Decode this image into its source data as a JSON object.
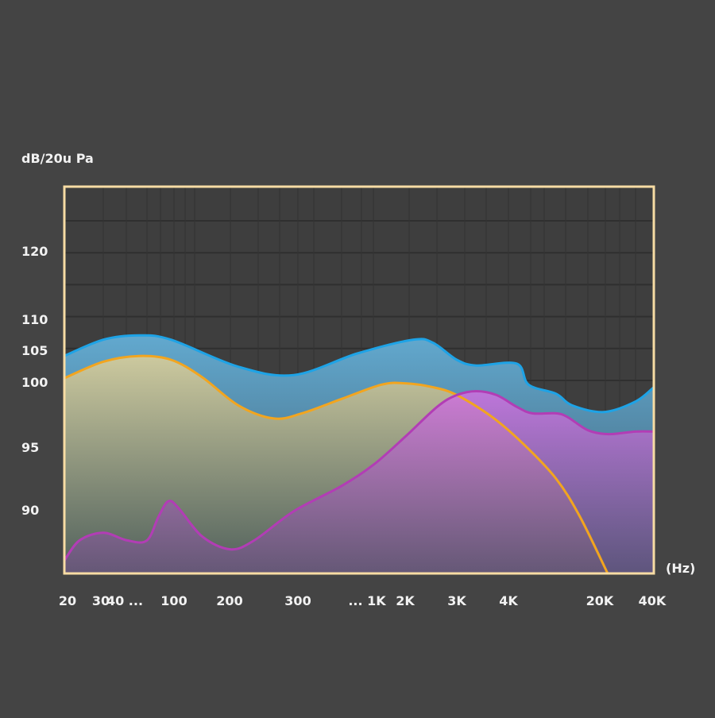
{
  "chart_data": {
    "type": "area",
    "ylabel": "dB/20u Pa",
    "xlabel": "(Hz)",
    "y_ticks": [
      120,
      110,
      105,
      100,
      95,
      90
    ],
    "x_categories": [
      "20",
      "30",
      "40 ...",
      "100",
      "200",
      "300",
      "... 1K",
      "2K",
      "3K",
      "4K",
      "20K",
      "40K"
    ],
    "x_note": "series x values are fractional positions along the category axis (0 = '20', 11 = '40K')",
    "ylim": [
      85,
      125
    ],
    "grid": true,
    "series": [
      {
        "name": "blue",
        "color": "#1ea3e6",
        "fill": "#5fa6cc",
        "points": [
          [
            -0.1,
            104.1
          ],
          [
            1.1,
            106.7
          ],
          [
            2.29,
            107.4
          ],
          [
            2.94,
            106.7
          ],
          [
            4.13,
            102.4
          ],
          [
            4.94,
            101.1
          ],
          [
            5.86,
            104.5
          ],
          [
            7.15,
            106.7
          ],
          [
            7.54,
            106.2
          ],
          [
            8,
            103.5
          ],
          [
            8.38,
            102.6
          ],
          [
            9.09,
            102.9
          ],
          [
            9.22,
            99.8
          ],
          [
            9.52,
            99.1
          ],
          [
            9.7,
            98.2
          ],
          [
            10.08,
            97.7
          ],
          [
            10.68,
            98.5
          ],
          [
            11.03,
            99.6
          ]
        ]
      },
      {
        "name": "orange",
        "color": "#f2a51f",
        "fill": "#c9c49a",
        "points": [
          [
            -0.1,
            100.6
          ],
          [
            1.1,
            103.2
          ],
          [
            2.29,
            104.1
          ],
          [
            2.94,
            103.5
          ],
          [
            3.5,
            100.8
          ],
          [
            4.13,
            98.2
          ],
          [
            4.65,
            97.2
          ],
          [
            5.06,
            97.6
          ],
          [
            5.63,
            98.7
          ],
          [
            6.38,
            99.8
          ],
          [
            7,
            99.9
          ],
          [
            7.54,
            99.6
          ],
          [
            8,
            99.0
          ],
          [
            8.69,
            97.3
          ],
          [
            9.17,
            95.2
          ],
          [
            9.52,
            92.5
          ],
          [
            9.78,
            89.5
          ],
          [
            10.15,
            85.0
          ]
        ]
      },
      {
        "name": "magenta",
        "color": "#b23db5",
        "fill": "#c070d0",
        "points": [
          [
            -0.1,
            86.0
          ],
          [
            0.36,
            87.6
          ],
          [
            1.1,
            88.2
          ],
          [
            2.05,
            87.6
          ],
          [
            2.45,
            87.6
          ],
          [
            2.69,
            89.5
          ],
          [
            2.89,
            90.7
          ],
          [
            3.09,
            90.1
          ],
          [
            3.51,
            87.9
          ],
          [
            4.01,
            86.9
          ],
          [
            4.36,
            87.6
          ],
          [
            4.94,
            89.9
          ],
          [
            5.63,
            91.9
          ],
          [
            6.17,
            93.6
          ],
          [
            7,
            95.8
          ],
          [
            7.62,
            98.1
          ],
          [
            8,
            99.0
          ],
          [
            8.38,
            99.3
          ],
          [
            8.77,
            99.0
          ],
          [
            9.09,
            98.1
          ],
          [
            9.26,
            97.6
          ],
          [
            9.52,
            97.6
          ],
          [
            9.65,
            97.3
          ],
          [
            9.87,
            96.3
          ],
          [
            10.17,
            96.0
          ],
          [
            10.68,
            96.2
          ],
          [
            11.03,
            96.2
          ]
        ]
      }
    ],
    "colors": {
      "background": "#444444",
      "frame": "#f7dca4",
      "grid": "#333333"
    }
  }
}
